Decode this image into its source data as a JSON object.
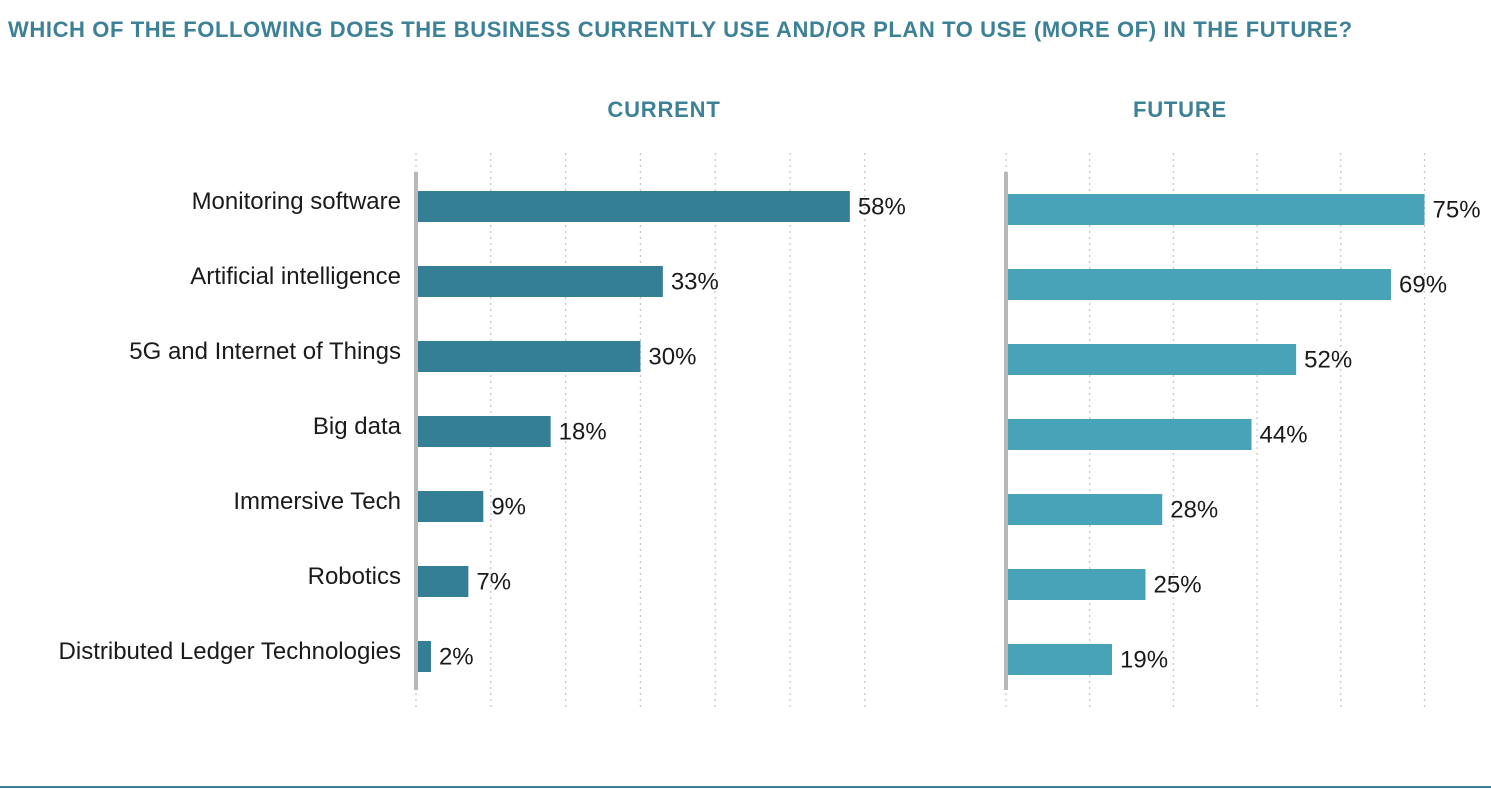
{
  "title": "WHICH OF THE FOLLOWING DOES THE BUSINESS CURRENTLY USE AND/OR PLAN TO USE (MORE OF) IN THE FUTURE?",
  "colors": {
    "title": "#3d8196",
    "current_bar": "#347f95",
    "future_bar": "#49a3b8",
    "axis": "#b8b8b8",
    "grid": "#c8c8c8",
    "label": "#1a1a1a"
  },
  "chart_data": [
    {
      "type": "bar",
      "orientation": "horizontal",
      "title": "CURRENT",
      "categories": [
        "Monitoring software",
        "Artificial intelligence",
        "5G and Internet of Things",
        "Big data",
        "Immersive Tech",
        "Robotics",
        "Distributed Ledger Technologies"
      ],
      "values": [
        58,
        33,
        30,
        18,
        9,
        7,
        2
      ],
      "value_labels": [
        "58%",
        "33%",
        "30%",
        "18%",
        "9%",
        "7%",
        "2%"
      ],
      "unit": "%",
      "xlim": [
        0,
        60
      ],
      "grid": true,
      "gridlines": [
        0,
        10,
        20,
        30,
        40,
        50,
        60
      ]
    },
    {
      "type": "bar",
      "orientation": "horizontal",
      "title": "FUTURE",
      "categories": [
        "Monitoring software",
        "Artificial intelligence",
        "5G and Internet of Things",
        "Big data",
        "Immersive Tech",
        "Robotics",
        "Distributed Ledger Technologies"
      ],
      "values": [
        75,
        69,
        52,
        44,
        28,
        25,
        19
      ],
      "value_labels": [
        "75%",
        "69%",
        "52%",
        "44%",
        "28%",
        "25%",
        "19%"
      ],
      "unit": "%",
      "xlim": [
        0,
        75
      ],
      "grid": true,
      "gridlines": [
        0,
        15,
        30,
        45,
        60,
        75
      ]
    }
  ]
}
